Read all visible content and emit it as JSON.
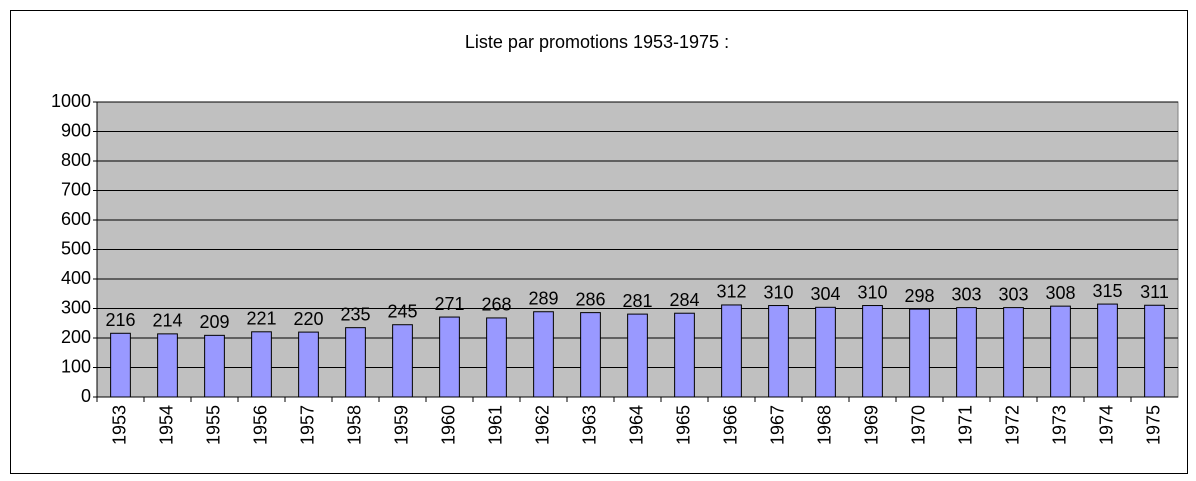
{
  "chart_data": {
    "type": "bar",
    "title": "Liste par promotions 1953-1975 :",
    "categories": [
      "1953",
      "1954",
      "1955",
      "1956",
      "1957",
      "1958",
      "1959",
      "1960",
      "1961",
      "1962",
      "1963",
      "1964",
      "1965",
      "1966",
      "1967",
      "1968",
      "1969",
      "1970",
      "1971",
      "1972",
      "1973",
      "1974",
      "1975"
    ],
    "values": [
      216,
      214,
      209,
      221,
      220,
      235,
      245,
      271,
      268,
      289,
      286,
      281,
      284,
      312,
      310,
      304,
      310,
      298,
      303,
      303,
      308,
      315,
      311
    ],
    "color": "#9999ff",
    "plot_background": "#c0c0c0",
    "ylim": [
      0,
      1000
    ],
    "yticks": [
      0,
      100,
      200,
      300,
      400,
      500,
      600,
      700,
      800,
      900,
      1000
    ],
    "grid": true
  }
}
